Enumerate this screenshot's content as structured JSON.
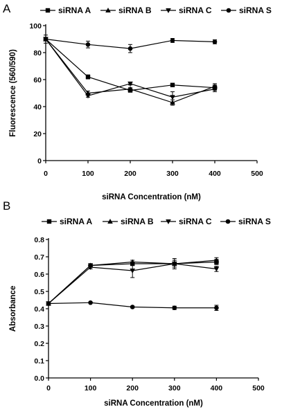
{
  "figure": {
    "title": ""
  },
  "chart_data": [
    {
      "panel_label": "A",
      "type": "line",
      "xlabel": "siRNA Concentration (nM)",
      "ylabel": "Fluorescence (560/590)",
      "xlim": [
        0,
        500
      ],
      "ylim": [
        0,
        100
      ],
      "xticks": [
        "0",
        "100",
        "200",
        "300",
        "400",
        "500"
      ],
      "yticks": [
        "0",
        "20",
        "40",
        "60",
        "80",
        "100"
      ],
      "x": [
        0,
        100,
        200,
        300,
        400
      ],
      "legend_position": "top",
      "series": [
        {
          "name": "siRNA A",
          "marker": "square",
          "values": [
            90,
            62,
            52,
            56,
            54
          ],
          "errors": [
            1,
            1.5,
            1,
            1,
            2
          ]
        },
        {
          "name": "siRNA B",
          "marker": "triangle-up",
          "values": [
            90,
            50,
            53,
            43,
            55
          ],
          "errors": [
            1,
            1.5,
            1,
            2,
            2
          ]
        },
        {
          "name": "siRNA C",
          "marker": "triangle-down",
          "values": [
            90,
            48,
            57,
            47,
            53
          ],
          "errors": [
            1,
            1,
            1,
            4,
            2
          ]
        },
        {
          "name": "siRNA S",
          "marker": "circle",
          "values": [
            90,
            86,
            83,
            89,
            88
          ],
          "errors": [
            3,
            2.5,
            3,
            1.5,
            1.5
          ]
        }
      ]
    },
    {
      "panel_label": "B",
      "type": "line",
      "xlabel": "siRNA Concentration (nM)",
      "ylabel": "Absorbance",
      "xlim": [
        0,
        500
      ],
      "ylim": [
        0,
        0.8
      ],
      "xticks": [
        "0",
        "100",
        "200",
        "300",
        "400",
        "500"
      ],
      "yticks": [
        "0.0",
        "0.1",
        "0.2",
        "0.3",
        "0.4",
        "0.5",
        "0.6",
        "0.7",
        "0.8"
      ],
      "x": [
        0,
        100,
        200,
        300,
        400
      ],
      "legend_position": "top",
      "series": [
        {
          "name": "siRNA A",
          "marker": "square",
          "values": [
            0.43,
            0.65,
            0.66,
            0.66,
            0.67
          ],
          "errors": [
            0,
            0.01,
            0.01,
            0.02,
            0.015
          ]
        },
        {
          "name": "siRNA B",
          "marker": "triangle-up",
          "values": [
            0.43,
            0.65,
            0.67,
            0.66,
            0.68
          ],
          "errors": [
            0,
            0.01,
            0.01,
            0.02,
            0.015
          ]
        },
        {
          "name": "siRNA C",
          "marker": "triangle-down",
          "values": [
            0.43,
            0.64,
            0.62,
            0.66,
            0.63
          ],
          "errors": [
            0,
            0.01,
            0.04,
            0.03,
            0.015
          ]
        },
        {
          "name": "siRNA S",
          "marker": "circle",
          "values": [
            0.43,
            0.435,
            0.41,
            0.405,
            0.405
          ],
          "errors": [
            0,
            0,
            0.005,
            0.01,
            0.015
          ]
        }
      ]
    }
  ]
}
